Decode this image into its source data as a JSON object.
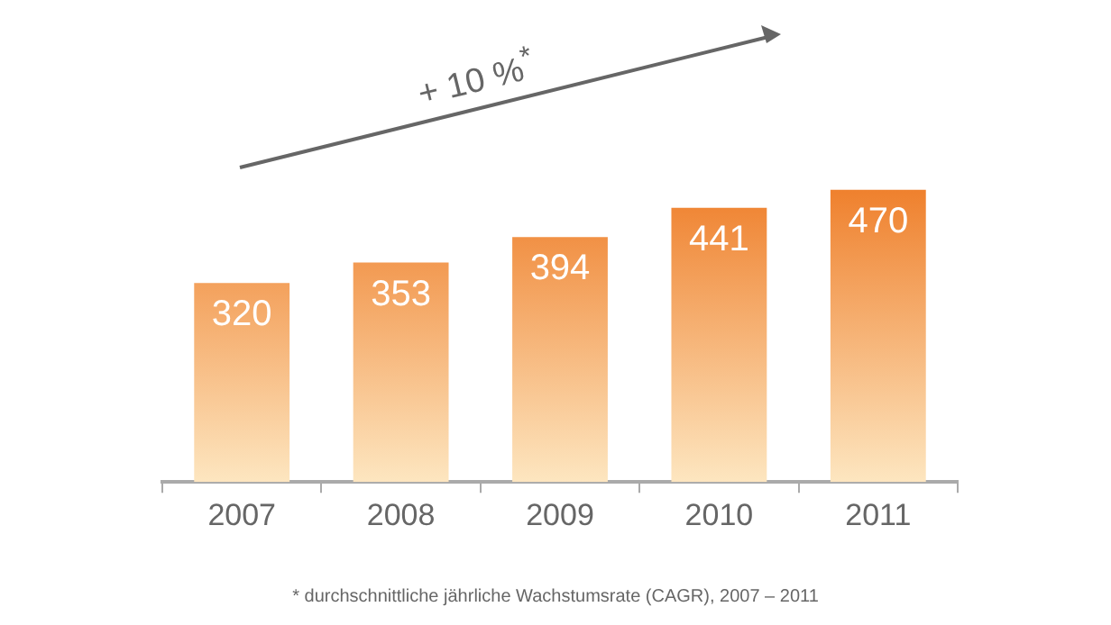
{
  "chart_data": {
    "type": "bar",
    "categories": [
      "2007",
      "2008",
      "2009",
      "2010",
      "2011"
    ],
    "values": [
      320,
      353,
      394,
      441,
      470
    ],
    "color": "#ee7a24",
    "data_labels": true,
    "grid": false,
    "legend": false,
    "tick_labels": "x",
    "annotations": [
      "+ 10 %$^{*}$",
      "* durchschnittliche jährliche Wachstumsrate (CAGR), 2007 – 2011"
    ]
  }
}
